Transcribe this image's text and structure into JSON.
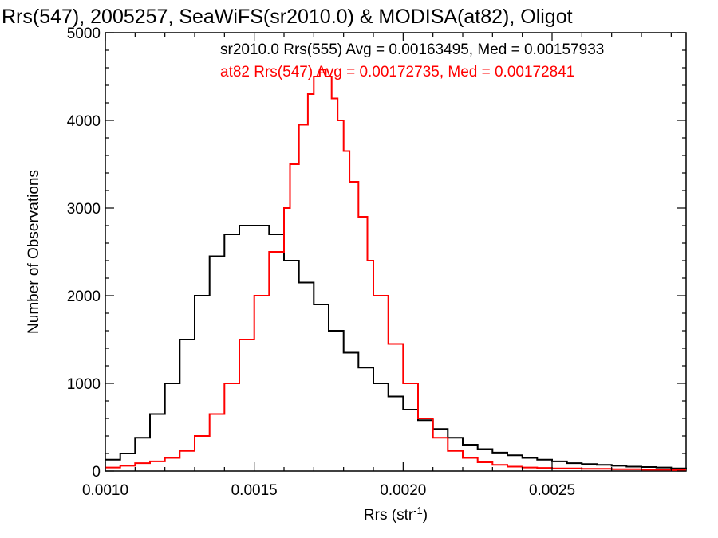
{
  "chart_data": {
    "type": "line",
    "title": "Rrs(547), 2005257, SeaWiFS(sr2010.0) & MODISA(at82), Oligot",
    "xlabel": "Rrs (str",
    "xlabel_sup": "-1",
    "xlabel_close": ")",
    "ylabel": "Number of Observations",
    "xlim": [
      0.001,
      0.00295
    ],
    "ylim": [
      0,
      5000
    ],
    "x_ticks": [
      0.001,
      0.0015,
      0.002,
      0.0025
    ],
    "x_tick_labels": [
      "0.0010",
      "0.0015",
      "0.0020",
      "0.0025"
    ],
    "y_ticks": [
      0,
      1000,
      2000,
      3000,
      4000,
      5000
    ],
    "y_tick_labels": [
      "0",
      "1000",
      "2000",
      "3000",
      "4000",
      "5000"
    ],
    "annotations": [
      {
        "text": "sr2010.0 Rrs(555) Avg = 0.00163495, Med = 0.00157933",
        "color": "#000000"
      },
      {
        "text": "at82 Rrs(547) Avg = 0.00172735, Med = 0.00172841",
        "color": "#ff0000"
      }
    ],
    "series": [
      {
        "color": "#000000",
        "x": [
          0.001,
          0.00105,
          0.0011,
          0.00115,
          0.0012,
          0.00125,
          0.0013,
          0.00135,
          0.0014,
          0.00145,
          0.0015,
          0.00155,
          0.0016,
          0.00165,
          0.0017,
          0.00175,
          0.0018,
          0.00185,
          0.0019,
          0.00195,
          0.002,
          0.00205,
          0.0021,
          0.00215,
          0.0022,
          0.00225,
          0.0023,
          0.00235,
          0.0024,
          0.00245,
          0.0025,
          0.00255,
          0.0026,
          0.00265,
          0.0027,
          0.00275,
          0.0028,
          0.00285,
          0.0029,
          0.00295
        ],
        "values": [
          130,
          200,
          380,
          650,
          1000,
          1500,
          2000,
          2450,
          2700,
          2800,
          2800,
          2700,
          2400,
          2150,
          1900,
          1600,
          1350,
          1180,
          1000,
          850,
          700,
          580,
          480,
          380,
          300,
          250,
          210,
          180,
          150,
          130,
          110,
          90,
          80,
          70,
          60,
          50,
          45,
          40,
          30,
          20
        ]
      },
      {
        "color": "#ff0000",
        "x": [
          0.001,
          0.00105,
          0.0011,
          0.00115,
          0.0012,
          0.00125,
          0.0013,
          0.00135,
          0.0014,
          0.00145,
          0.0015,
          0.00155,
          0.0016,
          0.00162,
          0.00165,
          0.00168,
          0.0017,
          0.00172,
          0.00174,
          0.00176,
          0.00178,
          0.0018,
          0.00182,
          0.00185,
          0.00188,
          0.0019,
          0.00195,
          0.002,
          0.00205,
          0.0021,
          0.00215,
          0.0022,
          0.00225,
          0.0023,
          0.00235,
          0.0024,
          0.00245,
          0.0025,
          0.0026,
          0.0027,
          0.0028,
          0.0029,
          0.00295
        ],
        "values": [
          40,
          60,
          90,
          110,
          150,
          230,
          400,
          650,
          1000,
          1500,
          2000,
          2500,
          3000,
          3500,
          3950,
          4300,
          4500,
          4580,
          4500,
          4250,
          4000,
          3650,
          3300,
          2900,
          2400,
          2000,
          1450,
          1000,
          600,
          380,
          230,
          150,
          100,
          70,
          50,
          40,
          35,
          30,
          25,
          20,
          15,
          10,
          10
        ]
      }
    ],
    "grid": false
  }
}
